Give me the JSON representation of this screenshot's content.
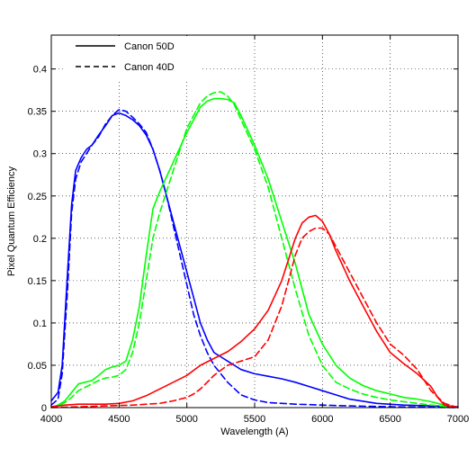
{
  "chart_data": {
    "type": "line",
    "title": "",
    "xlabel": "Wavelength (A)",
    "ylabel": "Pixel Quantum Efficiency",
    "xlim": [
      4000,
      7000
    ],
    "ylim": [
      0,
      0.44
    ],
    "x_ticks": [
      4000,
      4500,
      5000,
      5500,
      6000,
      6500,
      7000
    ],
    "x_tick_labels": [
      "4000",
      "4500",
      "5000",
      "5500",
      "6000",
      "6500",
      "7000"
    ],
    "y_ticks": [
      0,
      0.05,
      0.1,
      0.15,
      0.2,
      0.25,
      0.3,
      0.35,
      0.4
    ],
    "y_tick_labels": [
      "0",
      "0.05",
      "0.1",
      "0.15",
      "0.2",
      "0.25",
      "0.3",
      "0.35",
      "0.4"
    ],
    "grid": true,
    "legend_position": "top-left",
    "legend": [
      {
        "label": "Canon 50D",
        "dash": "solid"
      },
      {
        "label": "Canon 40D",
        "dash": "dashed"
      }
    ],
    "series": [
      {
        "camera": "Canon 50D",
        "channel": "blue",
        "color": "#0000ff",
        "dash": "solid",
        "x": [
          4000,
          4050,
          4080,
          4120,
          4150,
          4180,
          4220,
          4260,
          4300,
          4350,
          4400,
          4450,
          4500,
          4550,
          4600,
          4650,
          4700,
          4750,
          4800,
          4850,
          4900,
          4950,
          5000,
          5050,
          5100,
          5150,
          5200,
          5250,
          5300,
          5350,
          5400,
          5500,
          5600,
          5700,
          5800,
          5900,
          6000,
          6100,
          6200,
          6400,
          6600,
          6800,
          7000
        ],
        "y": [
          0.008,
          0.018,
          0.05,
          0.16,
          0.24,
          0.28,
          0.295,
          0.305,
          0.31,
          0.322,
          0.333,
          0.345,
          0.348,
          0.345,
          0.34,
          0.333,
          0.322,
          0.305,
          0.28,
          0.25,
          0.22,
          0.19,
          0.16,
          0.13,
          0.1,
          0.08,
          0.065,
          0.06,
          0.055,
          0.05,
          0.045,
          0.04,
          0.037,
          0.034,
          0.03,
          0.025,
          0.02,
          0.015,
          0.01,
          0.005,
          0.003,
          0.002,
          0.001
        ]
      },
      {
        "camera": "Canon 40D",
        "channel": "blue",
        "color": "#0000ff",
        "dash": "dashed",
        "x": [
          4000,
          4050,
          4080,
          4120,
          4150,
          4180,
          4220,
          4260,
          4300,
          4350,
          4400,
          4450,
          4500,
          4550,
          4600,
          4650,
          4700,
          4750,
          4800,
          4850,
          4900,
          4950,
          5000,
          5050,
          5100,
          5150,
          5200,
          5300,
          5400,
          5500,
          5600,
          5700,
          5800,
          6000,
          6200,
          6500,
          7000
        ],
        "y": [
          0.003,
          0.01,
          0.04,
          0.14,
          0.23,
          0.27,
          0.29,
          0.3,
          0.31,
          0.32,
          0.335,
          0.345,
          0.352,
          0.35,
          0.343,
          0.335,
          0.325,
          0.305,
          0.28,
          0.25,
          0.215,
          0.18,
          0.145,
          0.11,
          0.085,
          0.065,
          0.05,
          0.03,
          0.015,
          0.009,
          0.006,
          0.005,
          0.004,
          0.003,
          0.002,
          0.001,
          0.0
        ]
      },
      {
        "camera": "Canon 50D",
        "channel": "green",
        "color": "#00ff00",
        "dash": "solid",
        "x": [
          4000,
          4050,
          4100,
          4150,
          4200,
          4250,
          4300,
          4350,
          4400,
          4450,
          4500,
          4550,
          4600,
          4650,
          4700,
          4750,
          4800,
          4900,
          5000,
          5100,
          5150,
          5200,
          5250,
          5300,
          5350,
          5400,
          5500,
          5600,
          5700,
          5800,
          5900,
          6000,
          6100,
          6200,
          6300,
          6400,
          6500,
          6600,
          6700,
          6800,
          6900,
          7000
        ],
        "y": [
          0.0,
          0.003,
          0.008,
          0.018,
          0.028,
          0.03,
          0.032,
          0.038,
          0.045,
          0.048,
          0.05,
          0.055,
          0.08,
          0.12,
          0.18,
          0.235,
          0.255,
          0.29,
          0.325,
          0.355,
          0.362,
          0.365,
          0.365,
          0.364,
          0.36,
          0.345,
          0.31,
          0.27,
          0.22,
          0.17,
          0.11,
          0.075,
          0.05,
          0.035,
          0.026,
          0.02,
          0.016,
          0.012,
          0.01,
          0.007,
          0.003,
          0.0
        ]
      },
      {
        "camera": "Canon 40D",
        "channel": "green",
        "color": "#00ff00",
        "dash": "dashed",
        "x": [
          4000,
          4050,
          4100,
          4150,
          4200,
          4250,
          4300,
          4350,
          4400,
          4450,
          4500,
          4550,
          4600,
          4650,
          4700,
          4750,
          4800,
          4900,
          5000,
          5100,
          5150,
          5200,
          5250,
          5300,
          5350,
          5400,
          5500,
          5600,
          5700,
          5800,
          5900,
          6000,
          6100,
          6200,
          6300,
          6400,
          6500,
          6600,
          6700,
          6800,
          7000
        ],
        "y": [
          0.0,
          0.002,
          0.006,
          0.012,
          0.02,
          0.024,
          0.028,
          0.032,
          0.035,
          0.036,
          0.038,
          0.045,
          0.065,
          0.1,
          0.15,
          0.2,
          0.23,
          0.28,
          0.33,
          0.36,
          0.368,
          0.372,
          0.373,
          0.368,
          0.358,
          0.34,
          0.305,
          0.26,
          0.2,
          0.14,
          0.085,
          0.05,
          0.03,
          0.022,
          0.016,
          0.012,
          0.009,
          0.007,
          0.005,
          0.003,
          0.0
        ]
      },
      {
        "camera": "Canon 50D",
        "channel": "red",
        "color": "#ff0000",
        "dash": "solid",
        "x": [
          4000,
          4100,
          4200,
          4300,
          4400,
          4500,
          4600,
          4700,
          4800,
          4900,
          5000,
          5100,
          5200,
          5300,
          5400,
          5500,
          5600,
          5700,
          5750,
          5800,
          5850,
          5900,
          5950,
          6000,
          6050,
          6100,
          6200,
          6300,
          6400,
          6500,
          6600,
          6700,
          6800,
          6850,
          6900,
          7000
        ],
        "y": [
          0.001,
          0.003,
          0.004,
          0.004,
          0.004,
          0.005,
          0.008,
          0.014,
          0.022,
          0.03,
          0.038,
          0.05,
          0.058,
          0.066,
          0.078,
          0.093,
          0.115,
          0.15,
          0.175,
          0.2,
          0.218,
          0.225,
          0.227,
          0.22,
          0.205,
          0.185,
          0.15,
          0.12,
          0.09,
          0.065,
          0.052,
          0.04,
          0.025,
          0.012,
          0.003,
          0.0
        ]
      },
      {
        "camera": "Canon 40D",
        "channel": "red",
        "color": "#ff0000",
        "dash": "dashed",
        "x": [
          4000,
          4200,
          4400,
          4600,
          4800,
          4900,
          5000,
          5050,
          5100,
          5150,
          5200,
          5300,
          5400,
          5500,
          5600,
          5700,
          5750,
          5800,
          5850,
          5900,
          5950,
          6000,
          6050,
          6100,
          6200,
          6300,
          6400,
          6500,
          6600,
          6700,
          6800,
          6900,
          7000
        ],
        "y": [
          0.0,
          0.001,
          0.002,
          0.003,
          0.005,
          0.008,
          0.012,
          0.016,
          0.022,
          0.03,
          0.038,
          0.05,
          0.055,
          0.06,
          0.08,
          0.12,
          0.15,
          0.18,
          0.2,
          0.208,
          0.212,
          0.212,
          0.205,
          0.19,
          0.16,
          0.13,
          0.1,
          0.075,
          0.062,
          0.045,
          0.02,
          0.005,
          0.0
        ]
      }
    ]
  }
}
